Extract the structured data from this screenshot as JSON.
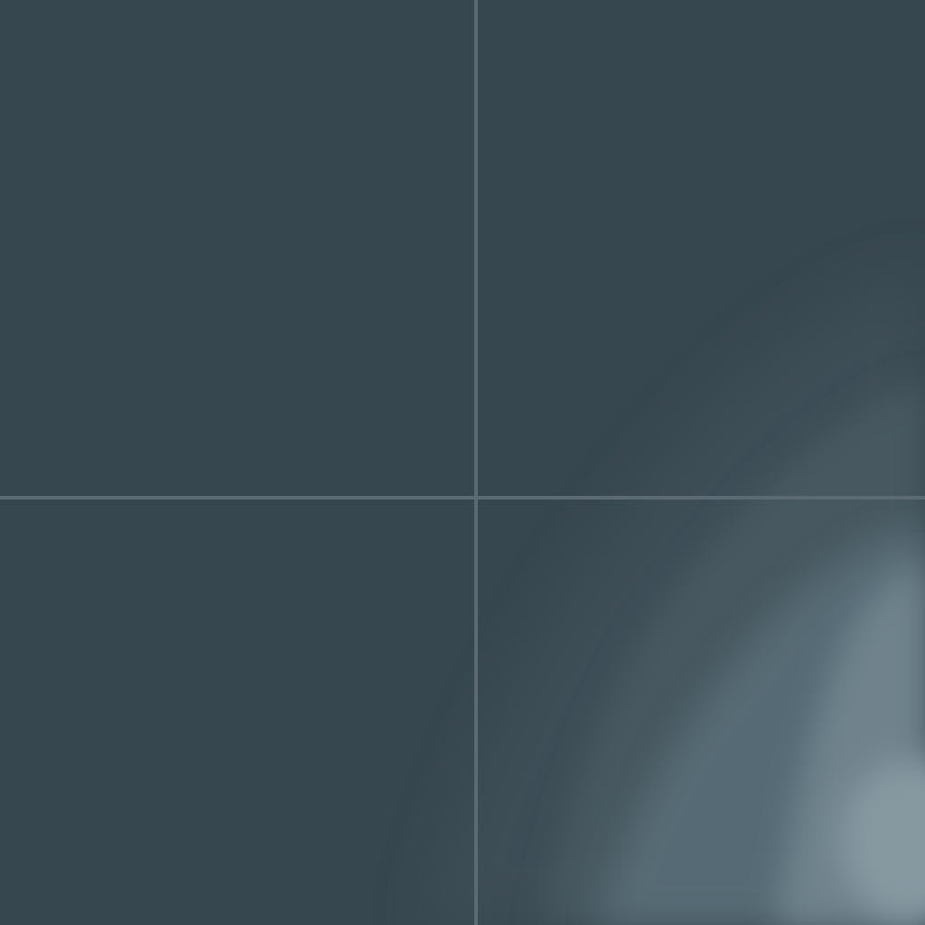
{
  "map": {
    "colors": {
      "background": "#37474f",
      "gridline": "#5c6b73",
      "layer_outer": "#3d4e56",
      "layer_mid": "#465860",
      "layer_inner": "#566a74",
      "layer_core": "#6f838d",
      "layer_highlight": "#8699a1"
    }
  }
}
